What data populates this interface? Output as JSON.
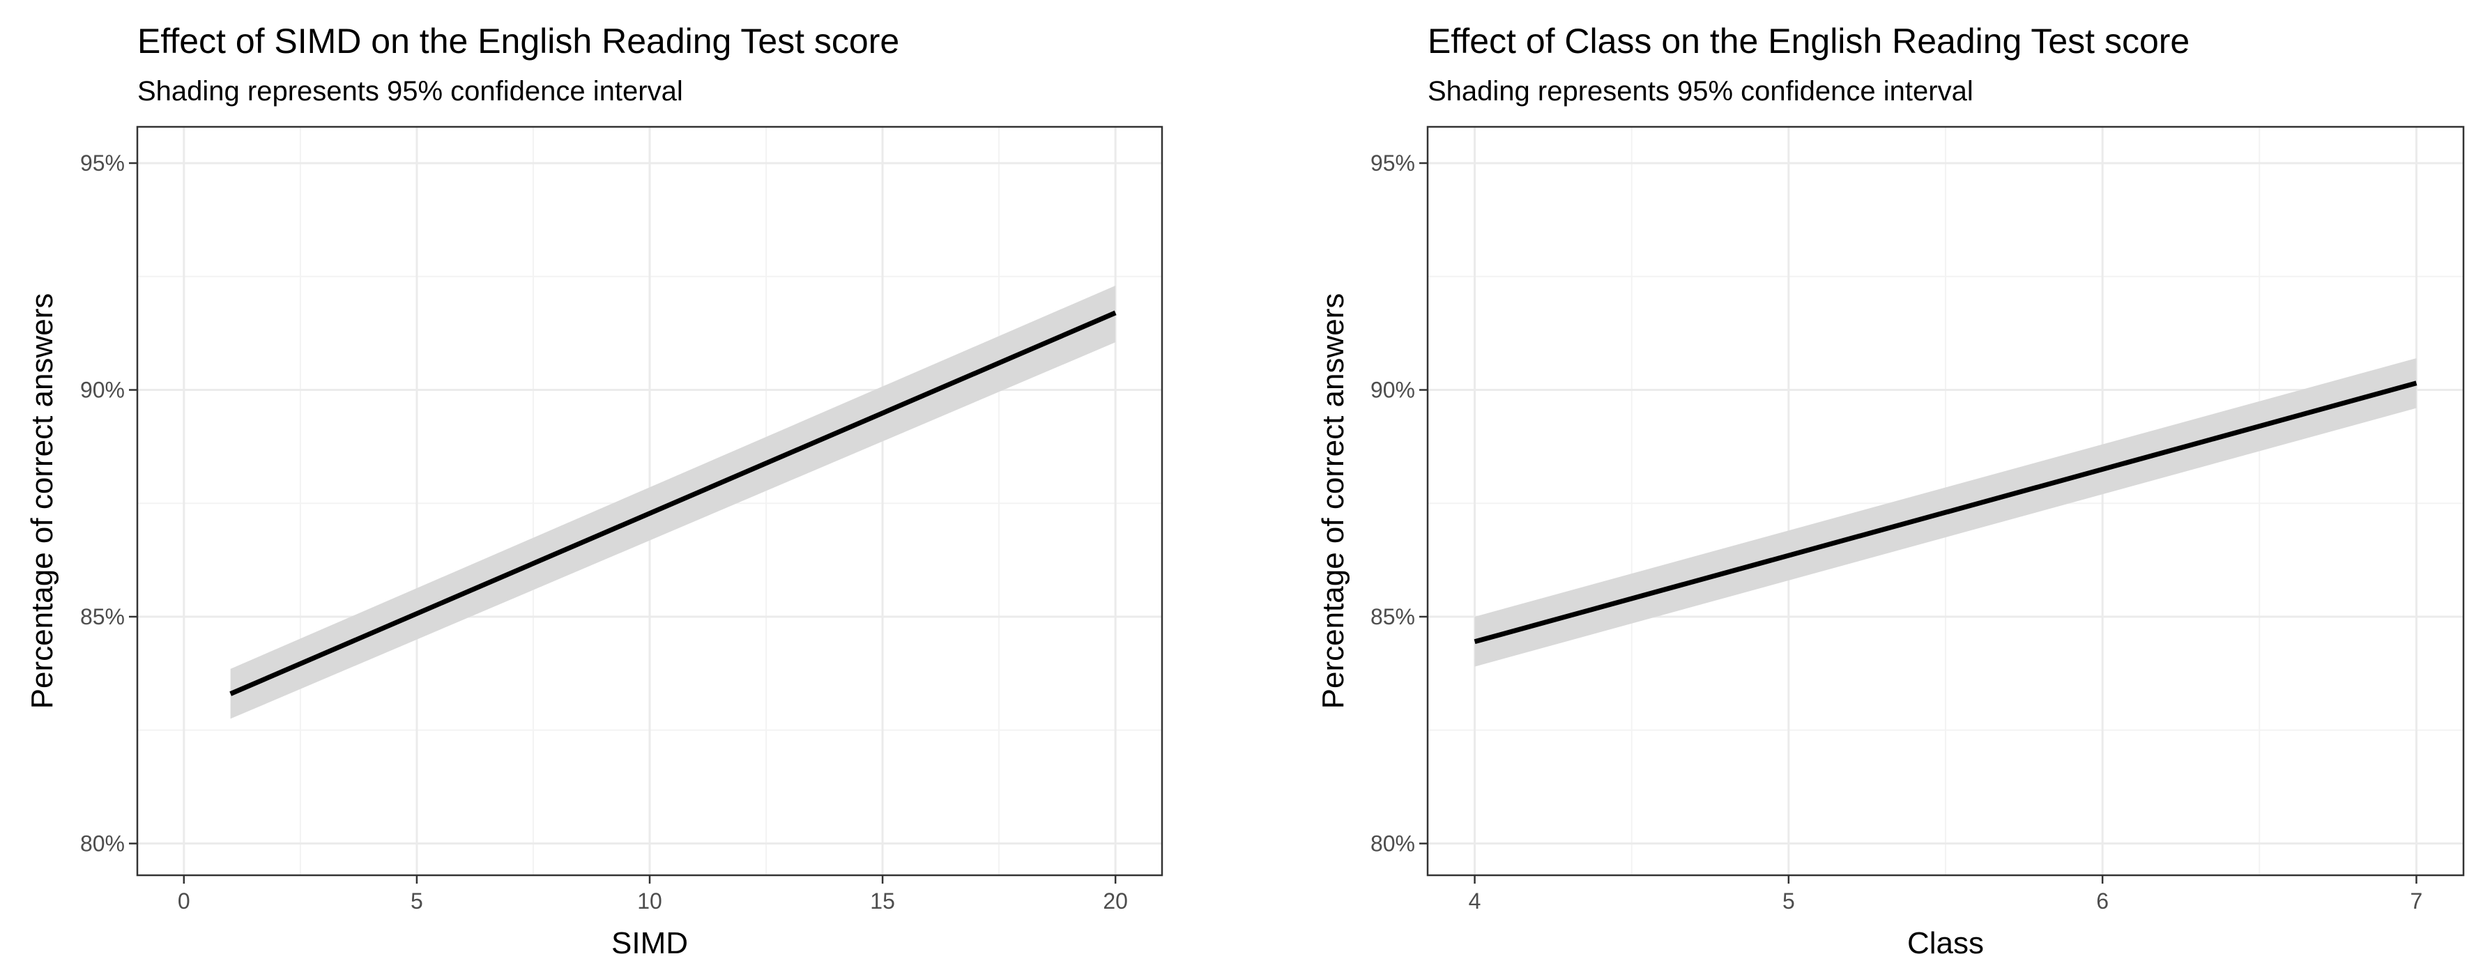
{
  "chart_data": [
    {
      "type": "line",
      "id": "simd",
      "title": "Effect of SIMD on the English Reading Test score",
      "subtitle": "Shading represents 95% confidence interval",
      "xlabel": "SIMD",
      "ylabel": "Percentage of correct answers",
      "xlim": [
        -1,
        21
      ],
      "ylim": [
        79.3,
        95.8
      ],
      "x_ticks": [
        0,
        5,
        10,
        15,
        20
      ],
      "x_tick_labels": [
        "0",
        "5",
        "10",
        "15",
        "20"
      ],
      "x_minor_ticks": [
        2.5,
        7.5,
        12.5,
        17.5
      ],
      "y_ticks": [
        80,
        85,
        90,
        95
      ],
      "y_tick_labels": [
        "80%",
        "85%",
        "90%",
        "95%"
      ],
      "y_minor_ticks": [
        82.5,
        87.5,
        92.5
      ],
      "grid": true,
      "series": [
        {
          "name": "fit",
          "x": [
            1,
            20
          ],
          "y": [
            83.3,
            91.7
          ],
          "ci_lower": [
            82.75,
            91.05
          ],
          "ci_upper": [
            83.85,
            92.3
          ]
        }
      ],
      "colors": {
        "line": "#000000",
        "band": "#d9d9d9"
      }
    },
    {
      "type": "line",
      "id": "class",
      "title": "Effect of Class on the English Reading Test score",
      "subtitle": "Shading represents 95% confidence interval",
      "xlabel": "Class",
      "ylabel": "Percentage of correct answers",
      "xlim": [
        3.85,
        7.15
      ],
      "ylim": [
        79.3,
        95.8
      ],
      "x_ticks": [
        4,
        5,
        6,
        7
      ],
      "x_tick_labels": [
        "4",
        "5",
        "6",
        "7"
      ],
      "x_minor_ticks": [
        4.5,
        5.5,
        6.5
      ],
      "y_ticks": [
        80,
        85,
        90,
        95
      ],
      "y_tick_labels": [
        "80%",
        "85%",
        "90%",
        "95%"
      ],
      "y_minor_ticks": [
        82.5,
        87.5,
        92.5
      ],
      "grid": true,
      "series": [
        {
          "name": "fit",
          "x": [
            4,
            7
          ],
          "y": [
            84.45,
            90.15
          ],
          "ci_lower": [
            83.9,
            89.6
          ],
          "ci_upper": [
            85.0,
            90.7
          ]
        }
      ],
      "colors": {
        "line": "#000000",
        "band": "#d9d9d9"
      }
    }
  ]
}
